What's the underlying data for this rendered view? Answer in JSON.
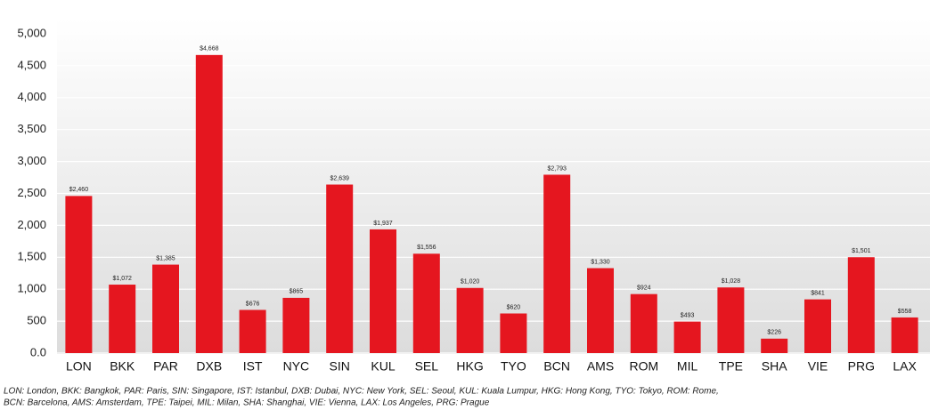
{
  "chart_data": {
    "type": "bar",
    "categories": [
      "LON",
      "BKK",
      "PAR",
      "DXB",
      "IST",
      "NYC",
      "SIN",
      "KUL",
      "SEL",
      "HKG",
      "TYO",
      "BCN",
      "AMS",
      "ROM",
      "MIL",
      "TPE",
      "SHA",
      "VIE",
      "PRG",
      "LAX"
    ],
    "values": [
      2460,
      1072,
      1385,
      4668,
      676,
      865,
      2639,
      1937,
      1556,
      1020,
      620,
      2793,
      1330,
      924,
      493,
      1028,
      226,
      841,
      1501,
      558
    ],
    "value_labels": [
      "$2,460",
      "$1,072",
      "$1,385",
      "$4,668",
      "$676",
      "$865",
      "$2,639",
      "$1,937",
      "$1,556",
      "$1,020",
      "$620",
      "$2,793",
      "$1,330",
      "$924",
      "$493",
      "$1,028",
      "$226",
      "$841",
      "$1,501",
      "$558"
    ],
    "color": "#e5161f",
    "ylim": [
      0,
      5000
    ],
    "yticks": [
      {
        "value": 0,
        "label": "0.0"
      },
      500,
      {
        "value": 1000,
        "label": "1,000"
      },
      {
        "value": 1500,
        "label": "1,500"
      },
      {
        "value": 2000,
        "label": "2,000"
      },
      {
        "value": 2500,
        "label": "2,500"
      },
      {
        "value": 3000,
        "label": "3,000"
      },
      {
        "value": 3500,
        "label": "3,500"
      },
      {
        "value": 4000,
        "label": "4,000"
      },
      {
        "value": 4500,
        "label": "4,500"
      },
      {
        "value": 5000,
        "label": "5,000"
      }
    ],
    "grid": true,
    "notes": [
      "LON: London, BKK: Bangkok, PAR: Paris, SIN: Singapore, IST: Istanbul, DXB: Dubai, NYC: New York, SEL: Seoul, KUL: Kuala Lumpur, HKG: Hong Kong, TYO: Tokyo, ROM: Rome,",
      "BCN: Barcelona, AMS: Amsterdam, TPE: Taipei, MIL: Milan, SHA: Shanghai, VIE: Vienna, LAX: Los Angeles, PRG: Prague"
    ]
  }
}
